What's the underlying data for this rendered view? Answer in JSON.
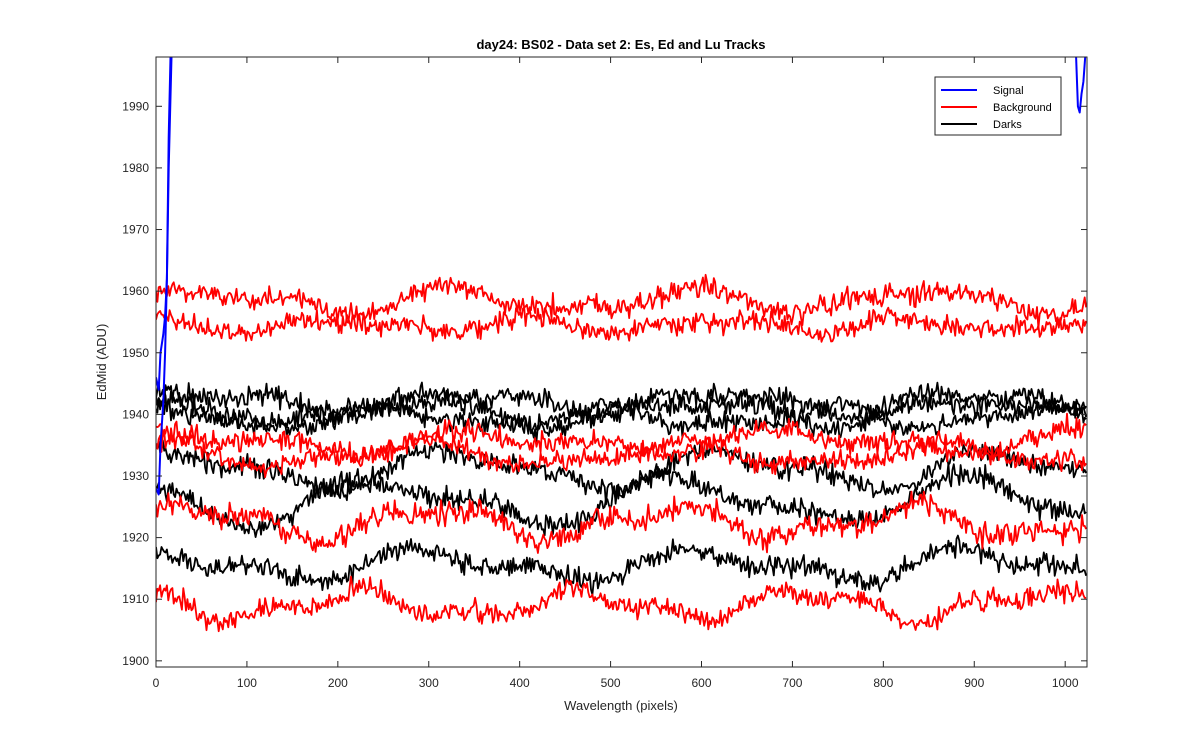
{
  "chart_data": {
    "type": "line",
    "title": "day24: BS02 - Data set 2: Es, Ed and Lu Tracks",
    "xlabel": "Wavelength (pixels)",
    "ylabel": "EdMid (ADU)",
    "xlim": [
      0,
      1024
    ],
    "ylim": [
      1899,
      1998
    ],
    "xticks": [
      0,
      100,
      200,
      300,
      400,
      500,
      600,
      700,
      800,
      900,
      1000
    ],
    "yticks": [
      1900,
      1910,
      1920,
      1930,
      1940,
      1950,
      1960,
      1970,
      1980,
      1990
    ],
    "legend": {
      "position": "top-right",
      "entries": [
        "Signal",
        "Background",
        "Darks"
      ]
    },
    "colors": {
      "Signal": "#0000ff",
      "Background": "#ff0000",
      "Darks": "#000000"
    },
    "series": [
      {
        "name": "Signal",
        "group": "Signal",
        "kind": "spike",
        "points": [
          [
            0,
            1946
          ],
          [
            3,
            1944
          ],
          [
            5,
            1950
          ],
          [
            8,
            1953
          ],
          [
            10,
            1956
          ],
          [
            12,
            1962
          ],
          [
            14,
            1985
          ],
          [
            16,
            1998
          ]
        ]
      },
      {
        "name": "Signal",
        "group": "Signal",
        "kind": "spike",
        "points": [
          [
            0,
            1928
          ],
          [
            3,
            1927
          ],
          [
            5,
            1935
          ],
          [
            8,
            1942
          ],
          [
            10,
            1950
          ],
          [
            12,
            1962
          ],
          [
            14,
            1980
          ],
          [
            17,
            1998
          ]
        ]
      },
      {
        "name": "Signal",
        "group": "Signal",
        "kind": "spike",
        "points": [
          [
            1012,
            1998
          ],
          [
            1014,
            1990
          ],
          [
            1016,
            1989
          ],
          [
            1018,
            1992
          ],
          [
            1020,
            1994
          ],
          [
            1022,
            1998
          ]
        ]
      },
      {
        "name": "Background 1",
        "group": "Background",
        "base": 1958.5,
        "noise": 1.3,
        "waves": [
          [
            1.6,
            0,
            260
          ],
          [
            0.9,
            1.2,
            150
          ]
        ]
      },
      {
        "name": "Background 2",
        "group": "Background",
        "base": 1954.5,
        "noise": 1.2,
        "waves": [
          [
            0.9,
            2.0,
            210
          ],
          [
            0.6,
            0.5,
            130
          ]
        ]
      },
      {
        "name": "Background 3",
        "group": "Background",
        "base": 1935.5,
        "noise": 1.2,
        "waves": [
          [
            1.4,
            0.8,
            330
          ],
          [
            1.0,
            2.2,
            170
          ]
        ]
      },
      {
        "name": "Background 4",
        "group": "Background",
        "base": 1933.5,
        "noise": 1.1,
        "waves": [
          [
            1.6,
            1.6,
            290
          ],
          [
            0.8,
            0.3,
            140
          ]
        ]
      },
      {
        "name": "Background 5",
        "group": "Background",
        "base": 1922.5,
        "noise": 1.3,
        "waves": [
          [
            2.2,
            0.4,
            260
          ],
          [
            1.1,
            1.4,
            120
          ]
        ]
      },
      {
        "name": "Background 6",
        "group": "Background",
        "base": 1909.0,
        "noise": 1.2,
        "waves": [
          [
            1.9,
            2.4,
            250
          ],
          [
            1.0,
            0.9,
            110
          ]
        ]
      },
      {
        "name": "Dark 1",
        "group": "Darks",
        "base": 1942.0,
        "noise": 1.2,
        "waves": [
          [
            1.6,
            0.2,
            280
          ],
          [
            0.9,
            1.7,
            140
          ]
        ]
      },
      {
        "name": "Dark 2",
        "group": "Darks",
        "base": 1940.5,
        "noise": 1.2,
        "waves": [
          [
            1.8,
            2.1,
            310
          ],
          [
            0.9,
            0.6,
            160
          ]
        ]
      },
      {
        "name": "Dark 3",
        "group": "Darks",
        "base": 1939.5,
        "noise": 1.1,
        "waves": [
          [
            1.5,
            1.1,
            240
          ],
          [
            0.8,
            2.6,
            130
          ]
        ]
      },
      {
        "name": "Dark 4",
        "group": "Darks",
        "base": 1931.0,
        "noise": 1.2,
        "waves": [
          [
            2.6,
            0.9,
            300
          ],
          [
            1.2,
            2.0,
            150
          ]
        ]
      },
      {
        "name": "Dark 5",
        "group": "Darks",
        "base": 1926.0,
        "noise": 1.2,
        "waves": [
          [
            3.2,
            2.8,
            320
          ],
          [
            1.4,
            0.4,
            170
          ]
        ]
      },
      {
        "name": "Dark 6",
        "group": "Darks",
        "base": 1915.5,
        "noise": 1.2,
        "waves": [
          [
            2.0,
            1.5,
            300
          ],
          [
            1.1,
            2.9,
            150
          ]
        ]
      }
    ]
  }
}
